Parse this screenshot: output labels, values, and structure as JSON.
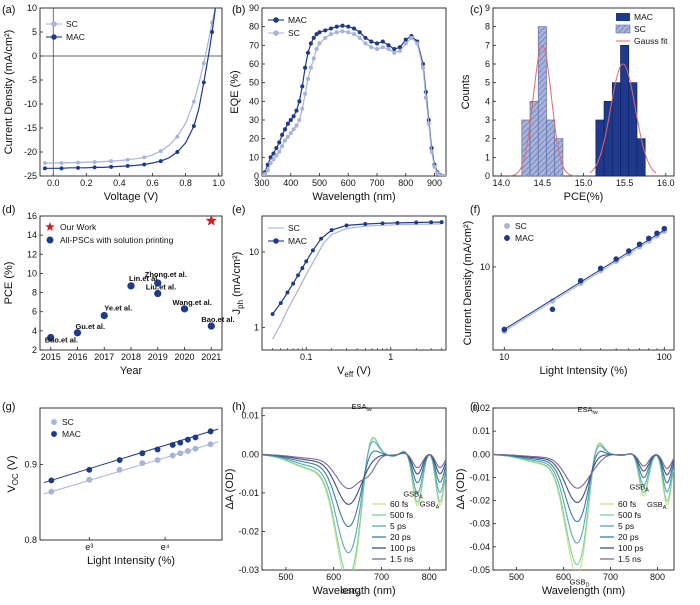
{
  "figure": {
    "colors": {
      "sc": "#a7b3d8",
      "sc_dark": "#8592c5",
      "mac": "#1f3a8c",
      "mac_dark": "#142a6b",
      "star": "#c42525",
      "gauss": "#e06a6a"
    }
  },
  "chart_data": [
    {
      "id": "a",
      "panel_label": "(a)",
      "type": "line",
      "xlabel": "Voltage (V)",
      "ylabel": "Current Density (mA/cm²)",
      "xlim": [
        -0.08,
        1.02
      ],
      "ylim": [
        -25,
        10
      ],
      "xticks": [
        "0.0",
        "0.2",
        "0.4",
        "0.6",
        "0.8",
        "1.0"
      ],
      "xtick_values": [
        0,
        0.2,
        0.4,
        0.6,
        0.8,
        1.0
      ],
      "yticks": [
        "-25",
        "-20",
        "-15",
        "-10",
        "-5",
        "0",
        "5",
        "10"
      ],
      "ytick_values": [
        -25,
        -20,
        -15,
        -10,
        -5,
        0,
        5,
        10
      ],
      "legend": [
        "SC",
        "MAC"
      ],
      "series": [
        {
          "name": "SC",
          "color": "#a7b3d8",
          "x": [
            -0.05,
            0,
            0.05,
            0.1,
            0.15,
            0.2,
            0.25,
            0.3,
            0.35,
            0.4,
            0.45,
            0.5,
            0.55,
            0.6,
            0.65,
            0.7,
            0.75,
            0.8,
            0.85,
            0.88,
            0.91,
            0.94,
            0.96,
            0.98
          ],
          "y": [
            -22.3,
            -22.3,
            -22.3,
            -22.2,
            -22.2,
            -22.1,
            -22.1,
            -22,
            -21.9,
            -21.8,
            -21.6,
            -21.4,
            -21.1,
            -20.6,
            -19.8,
            -18.6,
            -16.8,
            -14,
            -9.5,
            -5.8,
            -1.5,
            3.5,
            7,
            10
          ]
        },
        {
          "name": "MAC",
          "color": "#1f3a8c",
          "x": [
            -0.05,
            0,
            0.05,
            0.1,
            0.15,
            0.2,
            0.25,
            0.3,
            0.35,
            0.4,
            0.45,
            0.5,
            0.55,
            0.6,
            0.65,
            0.7,
            0.75,
            0.8,
            0.85,
            0.88,
            0.91,
            0.94,
            0.96,
            0.98
          ],
          "y": [
            -23.4,
            -23.4,
            -23.4,
            -23.3,
            -23.3,
            -23.3,
            -23.2,
            -23.2,
            -23.1,
            -23,
            -22.9,
            -22.8,
            -22.6,
            -22.3,
            -21.9,
            -21.2,
            -20,
            -18.1,
            -14.6,
            -11,
            -5.5,
            0.5,
            5,
            10
          ]
        }
      ]
    },
    {
      "id": "b",
      "panel_label": "(b)",
      "type": "line",
      "xlabel": "Wavelength (nm)",
      "ylabel": "EQE (%)",
      "xlim": [
        300,
        940
      ],
      "ylim": [
        0,
        90
      ],
      "xticks": [
        "300",
        "400",
        "500",
        "600",
        "700",
        "800",
        "900"
      ],
      "xtick_values": [
        300,
        400,
        500,
        600,
        700,
        800,
        900
      ],
      "yticks": [
        "0",
        "10",
        "20",
        "30",
        "40",
        "50",
        "60",
        "70",
        "80",
        "90"
      ],
      "ytick_values": [
        0,
        10,
        20,
        30,
        40,
        50,
        60,
        70,
        80,
        90
      ],
      "legend": [
        "MAC",
        "SC"
      ],
      "series": [
        {
          "name": "MAC",
          "color": "#1f3a8c",
          "x": [
            300,
            310,
            320,
            330,
            340,
            350,
            360,
            370,
            380,
            390,
            400,
            410,
            420,
            430,
            440,
            450,
            460,
            470,
            480,
            490,
            500,
            520,
            540,
            560,
            580,
            600,
            620,
            640,
            660,
            680,
            700,
            720,
            740,
            760,
            780,
            800,
            820,
            840,
            860,
            870,
            880,
            890,
            900,
            910,
            920,
            930,
            940
          ],
          "y": [
            0.5,
            2,
            6,
            10,
            12,
            15,
            18,
            22,
            25,
            28,
            30,
            32,
            35,
            40,
            48,
            58,
            66,
            71,
            74,
            76,
            77,
            78,
            79,
            80,
            80.5,
            80,
            79,
            77,
            74,
            72,
            71,
            72,
            70,
            68,
            69,
            73,
            75,
            72,
            60,
            45,
            30,
            15,
            6,
            2,
            0.5,
            0,
            0
          ]
        },
        {
          "name": "SC",
          "color": "#a7b3d8",
          "x": [
            300,
            310,
            320,
            330,
            340,
            350,
            360,
            370,
            380,
            390,
            400,
            410,
            420,
            430,
            440,
            450,
            460,
            470,
            480,
            490,
            500,
            520,
            540,
            560,
            580,
            600,
            620,
            640,
            660,
            680,
            700,
            720,
            740,
            760,
            780,
            800,
            820,
            840,
            860,
            870,
            880,
            890,
            900,
            910,
            920,
            930,
            940
          ],
          "y": [
            0.3,
            1,
            3,
            7,
            9,
            11,
            13,
            16,
            19,
            21,
            23,
            25,
            27,
            30,
            36,
            44,
            52,
            58,
            63,
            68,
            71,
            74,
            76,
            77,
            77.5,
            77,
            76,
            74,
            71,
            69,
            68,
            69,
            68,
            66,
            67,
            71,
            74,
            71,
            58,
            42,
            28,
            13,
            5,
            1.5,
            0.3,
            0,
            0
          ]
        }
      ]
    },
    {
      "id": "c",
      "panel_label": "(c)",
      "type": "bar",
      "xlabel": "PCE(%)",
      "ylabel": "Counts",
      "xlim": [
        13.9,
        16.1
      ],
      "ylim": [
        0,
        9
      ],
      "xticks": [
        "14.0",
        "14.5",
        "15.0",
        "15.5",
        "16.0"
      ],
      "xtick_values": [
        14.0,
        14.5,
        15.0,
        15.5,
        16.0
      ],
      "yticks": [
        "0",
        "1",
        "2",
        "3",
        "4",
        "5",
        "6",
        "7",
        "8",
        "9"
      ],
      "ytick_values": [
        0,
        1,
        2,
        3,
        4,
        5,
        6,
        7,
        8,
        9
      ],
      "legend": [
        "MAC",
        "SC",
        "Gauss fit"
      ],
      "bin_width": 0.1,
      "series": [
        {
          "name": "SC",
          "color": "#a7b3d8",
          "bins": [
            14.3,
            14.4,
            14.5,
            14.6,
            14.7
          ],
          "values": [
            3,
            4,
            8,
            3,
            2
          ]
        },
        {
          "name": "MAC",
          "color": "#1f3a8c",
          "bins": [
            15.2,
            15.3,
            15.4,
            15.5,
            15.6,
            15.7
          ],
          "values": [
            3,
            4,
            5,
            7,
            5,
            2
          ]
        }
      ],
      "gauss_fits": [
        {
          "center": 14.5,
          "sigma": 0.11,
          "amp": 7
        },
        {
          "center": 15.48,
          "sigma": 0.15,
          "amp": 6
        }
      ]
    },
    {
      "id": "d",
      "panel_label": "(d)",
      "type": "scatter",
      "xlabel": "Year",
      "ylabel": "PCE (%)",
      "xlim": [
        2014.6,
        2021.4
      ],
      "ylim": [
        2,
        16
      ],
      "xticks": [
        "2015",
        "2016",
        "2017",
        "2018",
        "2019",
        "2020",
        "2021"
      ],
      "xtick_values": [
        2015,
        2016,
        2017,
        2018,
        2019,
        2020,
        2021
      ],
      "yticks": [
        "2",
        "4",
        "6",
        "8",
        "10",
        "12",
        "14",
        "16"
      ],
      "ytick_values": [
        2,
        4,
        6,
        8,
        10,
        12,
        14,
        16
      ],
      "legend": [
        "Our Work",
        "All-PSCs with solution printing"
      ],
      "points": [
        {
          "label": "Bao.et al.",
          "x": 2015,
          "y": 3.3
        },
        {
          "label": "Gu.et al.",
          "x": 2016,
          "y": 3.8
        },
        {
          "label": "Ye.et al.",
          "x": 2017,
          "y": 5.6
        },
        {
          "label": "Lin.et al.",
          "x": 2018,
          "y": 8.7
        },
        {
          "label": "Zhong.et al.",
          "x": 2019,
          "y": 9.0
        },
        {
          "label": "Liu.et al.",
          "x": 2019,
          "y": 7.9
        },
        {
          "label": "Wang.et al.",
          "x": 2020,
          "y": 6.3
        },
        {
          "label": "Bao.et al.",
          "x": 2021,
          "y": 4.5
        }
      ],
      "our_work": {
        "x": 2021,
        "y": 15.5
      }
    },
    {
      "id": "e",
      "panel_label": "(e)",
      "type": "line",
      "xlabel": "V_eff (V)",
      "ylabel": "J_ph (mA/cm²)",
      "xscale": "log",
      "yscale": "log",
      "xlim": [
        0.03,
        4.5
      ],
      "ylim": [
        0.5,
        30
      ],
      "xticks": [
        "0.1",
        "1"
      ],
      "xtick_values": [
        0.1,
        1
      ],
      "yticks": [
        "1",
        "10"
      ],
      "ytick_values": [
        1,
        10
      ],
      "legend": [
        "SC",
        "MAC"
      ],
      "series": [
        {
          "name": "SC",
          "color": "#a7b3d8",
          "x": [
            0.04,
            0.05,
            0.06,
            0.08,
            0.1,
            0.13,
            0.16,
            0.2,
            0.3,
            0.5,
            0.8,
            1.2,
            2,
            3,
            4
          ],
          "y": [
            0.7,
            1.1,
            1.7,
            3.1,
            5,
            8.5,
            13,
            17,
            20.5,
            22,
            22.6,
            23,
            23.3,
            23.5,
            23.6
          ]
        },
        {
          "name": "MAC",
          "color": "#1f3a8c",
          "x": [
            0.04,
            0.05,
            0.06,
            0.07,
            0.08,
            0.09,
            0.1,
            0.12,
            0.15,
            0.2,
            0.3,
            0.5,
            0.8,
            1.2,
            2,
            3,
            4
          ],
          "y": [
            1.5,
            2.1,
            2.9,
            3.8,
            4.9,
            6.1,
            7.5,
            10.5,
            15,
            19.5,
            22.5,
            23.5,
            24,
            24.3,
            24.6,
            24.8,
            24.9
          ]
        }
      ]
    },
    {
      "id": "f",
      "panel_label": "(f)",
      "type": "scatter",
      "xlabel": "Light Intensity (%)",
      "ylabel": "Current Density (mA/cm²)",
      "xscale": "log",
      "yscale": "log",
      "xlim": [
        8.5,
        115
      ],
      "ylim": [
        1.5,
        32
      ],
      "xticks": [
        "10",
        "100"
      ],
      "xtick_values": [
        10,
        100
      ],
      "yticks": [
        "10"
      ],
      "ytick_values": [
        10
      ],
      "legend": [
        "SC",
        "MAC"
      ],
      "x": [
        10,
        20,
        30,
        40,
        50,
        60,
        70,
        80,
        90,
        100
      ],
      "series": [
        {
          "name": "SC",
          "color": "#a7b3d8",
          "values": [
            2.3,
            4.6,
            6.9,
            9.2,
            11.4,
            13.6,
            15.9,
            18.1,
            20.4,
            22.6
          ]
        },
        {
          "name": "MAC",
          "color": "#1f3a8c",
          "values": [
            2.4,
            3.8,
            7.3,
            9.7,
            12.0,
            14.4,
            16.8,
            19.2,
            21.6,
            24.0
          ]
        }
      ]
    },
    {
      "id": "g",
      "panel_label": "(g)",
      "type": "scatter",
      "xlabel": "Light Intensity (%)",
      "ylabel": "V_OC (V)",
      "xscale": "ln",
      "xlim": [
        2.35,
        4.75
      ],
      "ylim": [
        0.8,
        0.975
      ],
      "xticks": [
        "e³",
        "e⁴"
      ],
      "xtick_values": [
        3,
        4
      ],
      "yticks": [
        "0.8",
        "0.9"
      ],
      "ytick_values": [
        0.8,
        0.9
      ],
      "legend": [
        "SC",
        "MAC"
      ],
      "ln_x": [
        2.5,
        3.0,
        3.4,
        3.7,
        3.9,
        4.1,
        4.2,
        4.3,
        4.4,
        4.6
      ],
      "series": [
        {
          "name": "SC",
          "color": "#a7b3d8",
          "values": [
            0.864,
            0.88,
            0.893,
            0.902,
            0.906,
            0.912,
            0.915,
            0.918,
            0.921,
            0.927
          ]
        },
        {
          "name": "MAC",
          "color": "#1f3a8c",
          "values": [
            0.879,
            0.893,
            0.906,
            0.915,
            0.92,
            0.926,
            0.929,
            0.933,
            0.936,
            0.944
          ]
        }
      ]
    },
    {
      "id": "h",
      "panel_label": "(h)",
      "type": "line",
      "xlabel": "Wavelength (nm)",
      "ylabel": "ΔA (OD)",
      "xlim": [
        450,
        835
      ],
      "ylim": [
        -0.03,
        0.012
      ],
      "xticks": [
        "500",
        "600",
        "700",
        "800"
      ],
      "xtick_values": [
        500,
        600,
        700,
        800
      ],
      "yticks": [
        "-0.03",
        "-0.02",
        "-0.01",
        "0.00",
        "0.01"
      ],
      "ytick_values": [
        -0.03,
        -0.02,
        -0.01,
        0,
        0.01
      ],
      "legend": [
        "60 fs",
        "500 fs",
        "5 ps",
        "20 ps",
        "100 ps",
        "1.5 ns"
      ],
      "annotations": {
        "esa": "ESA",
        "esa_sub": "lw",
        "gsb_d": "GSB",
        "gsb_d_sub": "D",
        "gsb_a1": "GSB",
        "gsb_a1_sub": "A",
        "gsb_a2": "GSB",
        "gsb_a2_sub": "A"
      },
      "series_colors": [
        "#c5e38b",
        "#7fd0a3",
        "#57a8b3",
        "#3d7ca0",
        "#3f4f82",
        "#7a6a9a"
      ],
      "amplitudes": [
        1.0,
        0.93,
        0.75,
        0.55,
        0.38,
        0.26
      ],
      "params": {
        "base": 0,
        "esa_center": 675,
        "esa_amp": 0.011,
        "gsb_d_center": 632,
        "gsb_d_amp": -0.033,
        "gsb_d_width": 26,
        "gsb_a1_center": 775,
        "gsb_a1_amp": -0.012,
        "gsb_a2_center": 822,
        "gsb_a2_amp": -0.013
      }
    },
    {
      "id": "i",
      "panel_label": "(i)",
      "type": "line",
      "xlabel": "Wavelength (nm)",
      "ylabel": "ΔA (OD)",
      "xlim": [
        450,
        835
      ],
      "ylim": [
        -0.05,
        0.02
      ],
      "xticks": [
        "500",
        "600",
        "700",
        "800"
      ],
      "xtick_values": [
        500,
        600,
        700,
        800
      ],
      "yticks": [
        "-0.05",
        "-0.04",
        "-0.03",
        "-0.02",
        "-0.01",
        "0.00",
        "0.01",
        "0.02"
      ],
      "ytick_values": [
        -0.05,
        -0.04,
        -0.03,
        -0.02,
        -0.01,
        0,
        0.01,
        0.02
      ],
      "legend": [
        "60 fs",
        "500 fs",
        "5 ps",
        "20 ps",
        "100 ps",
        "1.5 ns"
      ],
      "annotations": {
        "esa": "ESA",
        "esa_sub": "lw",
        "gsb_d": "GSB",
        "gsb_d_sub": "D",
        "gsb_a1": "GSB",
        "gsb_a1_sub": "A",
        "gsb_a2": "GSB",
        "gsb_a2_sub": "A"
      },
      "series_colors": [
        "#c5e38b",
        "#7fd0a3",
        "#57a8b3",
        "#3d7ca0",
        "#3f4f82",
        "#7a6a9a"
      ],
      "amplitudes": [
        1.0,
        0.92,
        0.74,
        0.56,
        0.4,
        0.28
      ],
      "params": {
        "base": 0,
        "esa_center": 668,
        "esa_amp": 0.017,
        "gsb_d_center": 630,
        "gsb_d_amp": -0.051,
        "gsb_d_width": 25,
        "gsb_a1_center": 770,
        "gsb_a1_amp": -0.017,
        "gsb_a2_center": 820,
        "gsb_a2_amp": -0.022
      }
    }
  ]
}
